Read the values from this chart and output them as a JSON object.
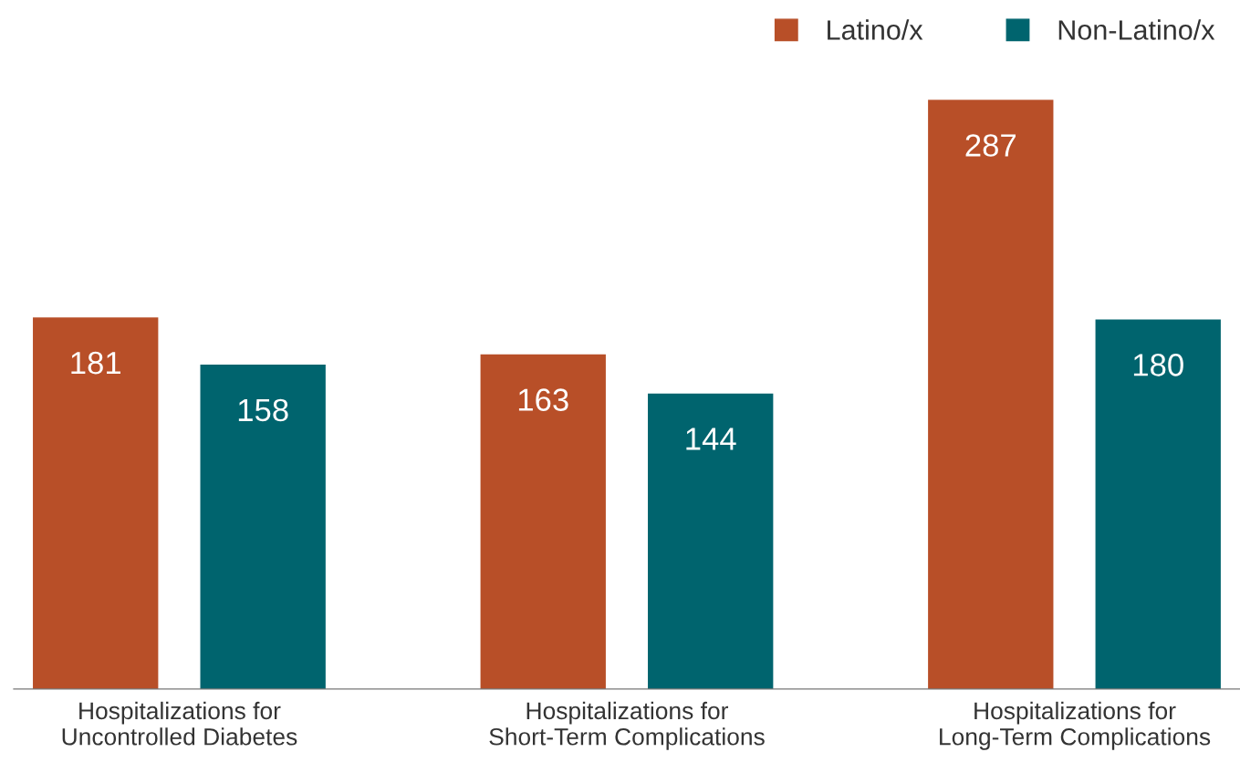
{
  "chart_data": {
    "type": "bar",
    "categories": [
      "Hospitalizations for\nUncontrolled Diabetes",
      "Hospitalizations for\nShort-Term Complications",
      "Hospitalizations for\nLong-Term Complications"
    ],
    "series": [
      {
        "name": "Latino/x",
        "color": "#b84f28",
        "values": [
          181,
          163,
          287
        ]
      },
      {
        "name": "Non-Latino/x",
        "color": "#00646e",
        "values": [
          158,
          144,
          180
        ]
      }
    ],
    "data_labels": true,
    "legend": "top right",
    "grid": false
  }
}
